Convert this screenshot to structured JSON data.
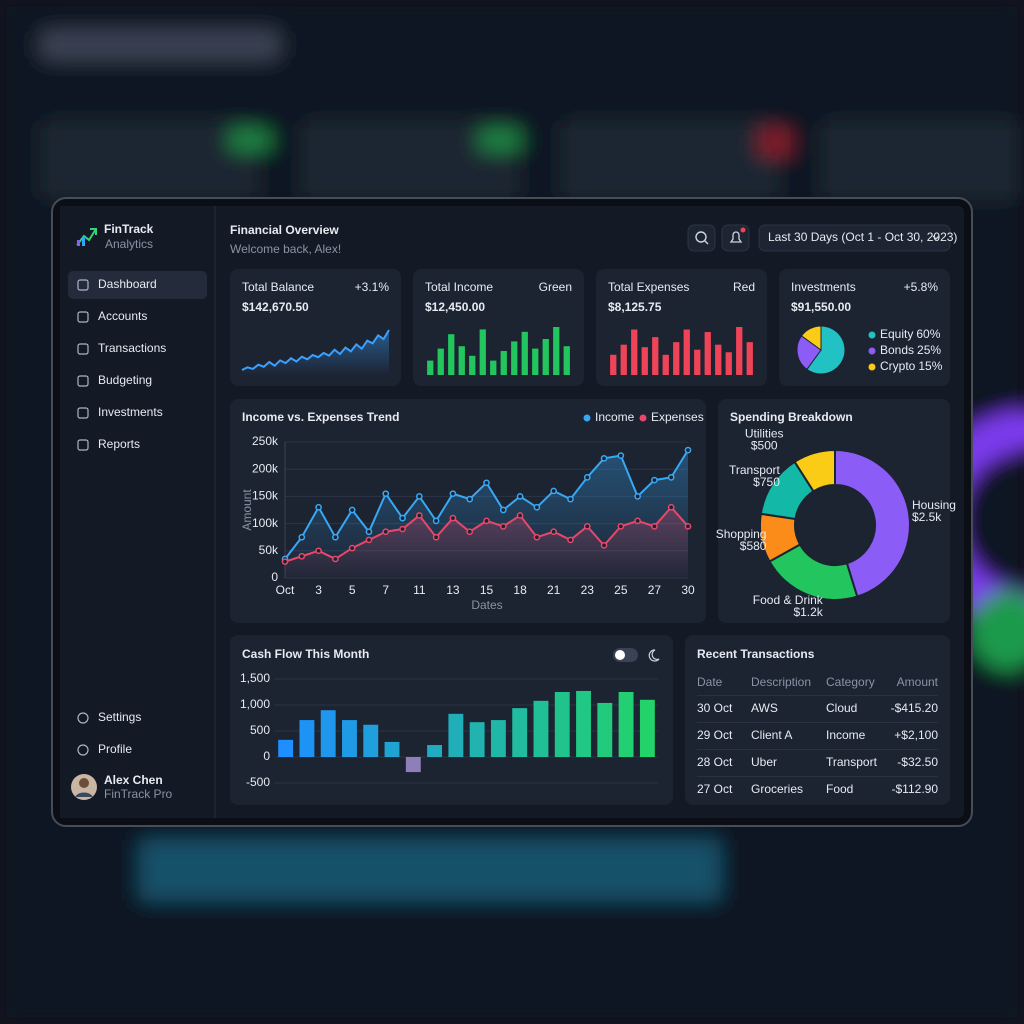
{
  "brand": {
    "name": "FinTrack",
    "sub": "Analytics"
  },
  "nav": [
    "Dashboard",
    "Accounts",
    "Transactions",
    "Budgeting",
    "Investments",
    "Reports"
  ],
  "nav_bottom": [
    "Settings",
    "Profile"
  ],
  "user": {
    "name": "Alex Chen",
    "plan": "FinTrack Pro"
  },
  "header": {
    "title": "Financial Overview",
    "subtitle": "Welcome back, Alex!",
    "date_range": "Last 30 Days (Oct 1 - Oct 30, 2023)"
  },
  "cards": [
    {
      "title": "Total Balance",
      "value": "$142,670.50",
      "change": "+3.1%",
      "change_color": "#34d27a",
      "chart": {
        "type": "line",
        "color": "#3aa0ff",
        "values": [
          20,
          25,
          22,
          30,
          26,
          35,
          28,
          38,
          33,
          42,
          36,
          45,
          40,
          48,
          44,
          52,
          47,
          58,
          50,
          62,
          55,
          68,
          60,
          75,
          70,
          85,
          78,
          95
        ]
      }
    },
    {
      "title": "Total Income",
      "value": "$12,450.00",
      "change": "Green",
      "change_color": "#34d27a",
      "chart": {
        "type": "bar",
        "color": "#22c55e",
        "values": [
          30,
          55,
          85,
          60,
          40,
          95,
          30,
          50,
          70,
          90,
          55,
          75,
          100,
          60
        ]
      }
    },
    {
      "title": "Total Expenses",
      "value": "$8,125.75",
      "change": "Red",
      "change_color": "#ef4458",
      "chart": {
        "type": "bar",
        "color": "#ef4458",
        "values": [
          40,
          60,
          90,
          55,
          75,
          40,
          65,
          90,
          50,
          85,
          60,
          45,
          95,
          65
        ]
      }
    },
    {
      "title": "Investments",
      "value": "$91,550.00",
      "change": "+5.8%",
      "change_color": "#34d27a",
      "chart": {
        "type": "pie",
        "categories": [
          "Equity",
          "Bonds",
          "Crypto"
        ],
        "values": [
          60,
          25,
          15
        ],
        "value_labels": [
          "60%",
          "25%",
          "15%"
        ],
        "colors": [
          "#22c1c3",
          "#8b5cf6",
          "#facc15"
        ]
      }
    }
  ],
  "trend": {
    "type": "line",
    "title": "Income vs. Expenses Trend",
    "x_label": "Dates",
    "y_label": "Amount",
    "categories": [
      "Oct",
      null,
      "3",
      null,
      "5",
      null,
      "7",
      null,
      "11",
      null,
      "13",
      null,
      "15",
      null,
      "18",
      null,
      "21",
      null,
      "23",
      null,
      "25",
      null,
      "27",
      null,
      "30"
    ],
    "series": [
      {
        "name": "Income",
        "color": "#38a8f5",
        "values": [
          35000,
          75000,
          130000,
          75000,
          125000,
          85000,
          155000,
          110000,
          150000,
          105000,
          155000,
          145000,
          175000,
          125000,
          150000,
          130000,
          160000,
          145000,
          185000,
          220000,
          225000,
          150000,
          180000,
          185000,
          235000
        ]
      },
      {
        "name": "Expenses",
        "color": "#e8476b",
        "values": [
          30000,
          40000,
          50000,
          35000,
          55000,
          70000,
          85000,
          90000,
          115000,
          75000,
          110000,
          85000,
          105000,
          95000,
          115000,
          75000,
          85000,
          70000,
          95000,
          60000,
          95000,
          105000,
          95000,
          130000,
          95000
        ]
      }
    ],
    "ylim": [
      0,
      250000
    ],
    "yticks": [
      0,
      {
        "value": 50000,
        "label": "50k"
      },
      {
        "value": 100000,
        "label": "100k"
      },
      {
        "value": 150000,
        "label": "150k"
      },
      {
        "value": 200000,
        "label": "200k"
      },
      {
        "value": 250000,
        "label": "250k"
      }
    ],
    "grid": true
  },
  "spending": {
    "type": "donut",
    "title": "Spending Breakdown",
    "categories": [
      "Housing",
      "Food & Drink",
      "Shopping",
      "Transport",
      "Utilities"
    ],
    "values": [
      2500,
      1200,
      580,
      750,
      500
    ],
    "value_labels": [
      "$2.5k",
      "$1.2k",
      "$580",
      "$750",
      "$500"
    ],
    "colors": [
      "#8b5cf6",
      "#22c55e",
      "#fb8c1a",
      "#14b8a6",
      "#facc15"
    ]
  },
  "cashflow": {
    "type": "bar",
    "title": "Cash Flow This Month",
    "values": [
      330,
      710,
      900,
      710,
      620,
      290,
      -290,
      230,
      830,
      670,
      710,
      940,
      1080,
      1250,
      1270,
      1040,
      1250,
      1100
    ],
    "ylim": [
      -500,
      1500
    ],
    "yticks": [
      {
        "value": -500,
        "label": "-500"
      },
      0,
      500,
      {
        "value": 1000,
        "label": "1,000"
      },
      {
        "value": 1500,
        "label": "1,500"
      }
    ],
    "color_ramp": [
      "#1e8fff",
      "#22d36a"
    ],
    "negative_color": "#8e7fb8",
    "grid": true
  },
  "transactions": {
    "title": "Recent Transactions",
    "columns": [
      "Date",
      "Description",
      "Category",
      "Amount"
    ],
    "rows": [
      [
        "30 Oct",
        "AWS",
        "Cloud",
        "-$415.20"
      ],
      [
        "29 Oct",
        "Client A",
        "Income",
        "+$2,100"
      ],
      [
        "28 Oct",
        "Uber",
        "Transport",
        "-$32.50"
      ],
      [
        "27 Oct",
        "Groceries",
        "Food",
        "-$112.90"
      ]
    ]
  }
}
